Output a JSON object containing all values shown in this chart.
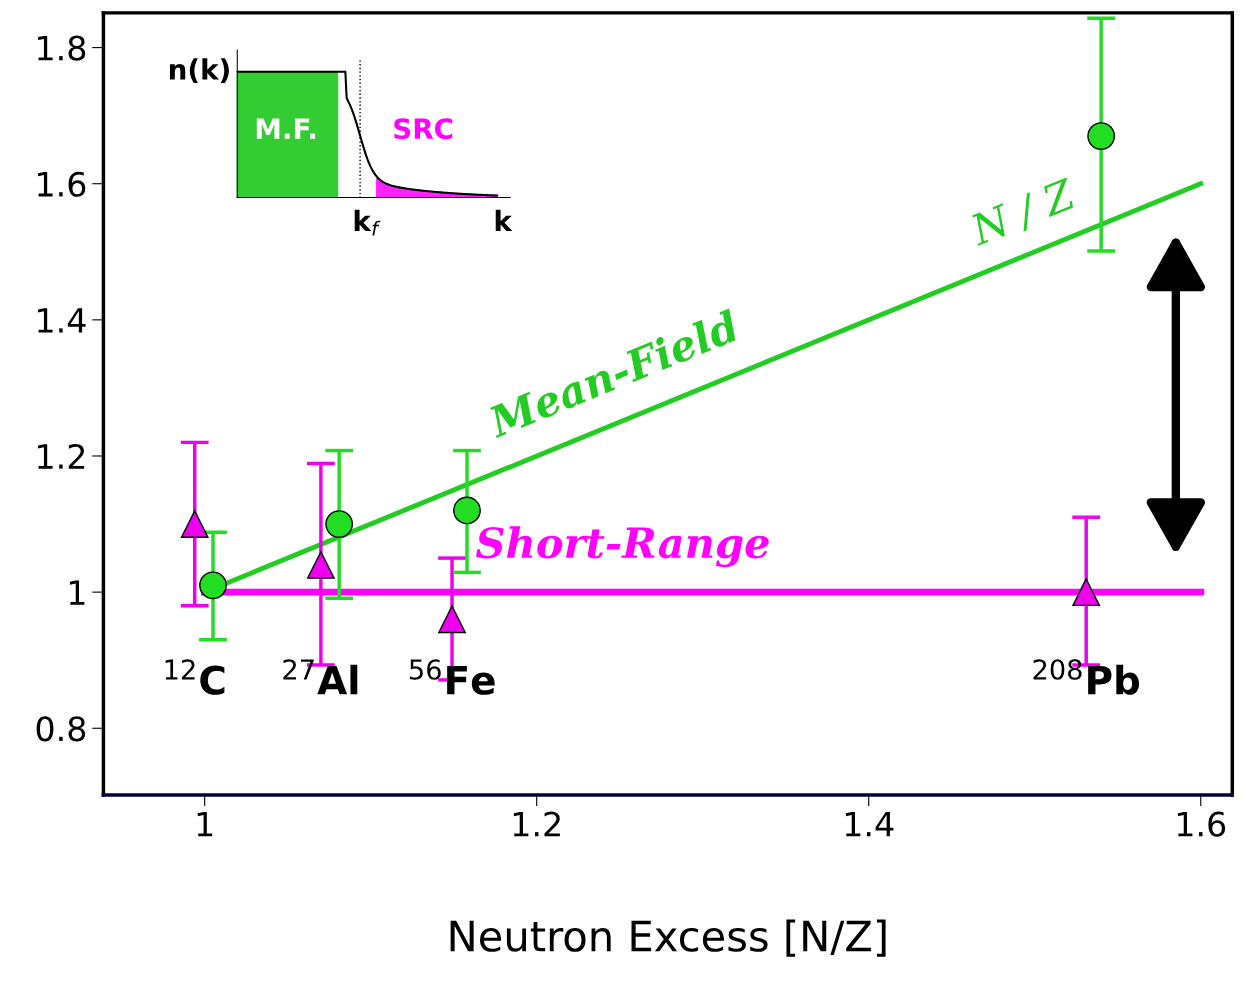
{
  "chart_data": {
    "type": "scatter",
    "xlabel": "Neutron Excess [N/Z]",
    "xlim": [
      0.939,
      1.619
    ],
    "ylim": [
      0.702,
      1.851
    ],
    "xticks": [
      1,
      1.2,
      1.4,
      1.6
    ],
    "yticks": [
      0.8,
      1,
      1.2,
      1.4,
      1.6,
      1.8
    ],
    "grid": false,
    "legend": false,
    "series": [
      {
        "type": "line",
        "name": "Mean-Field",
        "color": "#22cc22",
        "x": [
          1.0,
          1.6
        ],
        "values": [
          1.0,
          1.6
        ],
        "marker": "none"
      },
      {
        "type": "line",
        "name": "Short-Range",
        "color": "#ff00ff",
        "x": [
          1.0,
          1.6
        ],
        "values": [
          1.0,
          1.0
        ],
        "marker": "none"
      },
      {
        "color": "#ee00ee",
        "marker": "triangle",
        "x": [
          0.994,
          1.07,
          1.149,
          1.531
        ],
        "values": [
          1.1,
          1.04,
          0.96,
          1.0
        ],
        "errors": [
          [
            0.98,
            1.22
          ],
          [
            0.893,
            1.189
          ],
          [
            0.871,
            1.05
          ],
          [
            0.893,
            1.11
          ]
        ]
      },
      {
        "color": "#22dd22",
        "marker": "circle",
        "x": [
          1.005,
          1.081,
          1.158,
          1.54
        ],
        "values": [
          1.01,
          1.1,
          1.12,
          1.67
        ],
        "errors": [
          [
            0.93,
            1.088
          ],
          [
            0.991,
            1.208
          ],
          [
            1.029,
            1.208
          ],
          [
            1.501,
            1.843
          ]
        ]
      }
    ],
    "annotations": [
      "N / Z",
      "$^{12}$C",
      "$^{27}$Al",
      "$^{56}$Fe",
      "$^{208}$Pb",
      "n(k)",
      "M.F.",
      "SRC",
      "k$_{f}$",
      "k"
    ]
  }
}
